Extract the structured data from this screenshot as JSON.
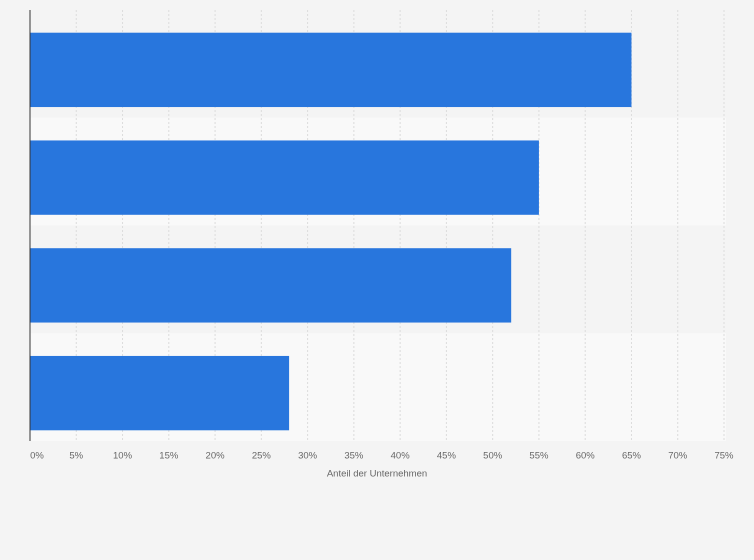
{
  "chart_data": {
    "type": "hbar",
    "xlabel": "Anteil der Unternehmen",
    "categories": [
      null,
      null,
      null,
      null
    ],
    "values": [
      65,
      55,
      52,
      28
    ],
    "color": "#2876dd",
    "xlim": [
      0,
      75
    ],
    "xticks": [
      {
        "value": 0,
        "label": "0%"
      },
      {
        "value": 5,
        "label": "5%"
      },
      {
        "value": 10,
        "label": "10%"
      },
      {
        "value": 15,
        "label": "15%"
      },
      {
        "value": 20,
        "label": "20%"
      },
      {
        "value": 25,
        "label": "25%"
      },
      {
        "value": 30,
        "label": "30%"
      },
      {
        "value": 35,
        "label": "35%"
      },
      {
        "value": 40,
        "label": "40%"
      },
      {
        "value": 45,
        "label": "45%"
      },
      {
        "value": 50,
        "label": "50%"
      },
      {
        "value": 55,
        "label": "55%"
      },
      {
        "value": 60,
        "label": "60%"
      },
      {
        "value": 65,
        "label": "65%"
      },
      {
        "value": 70,
        "label": "70%"
      },
      {
        "value": 75,
        "label": "75%"
      }
    ],
    "grid": true
  }
}
